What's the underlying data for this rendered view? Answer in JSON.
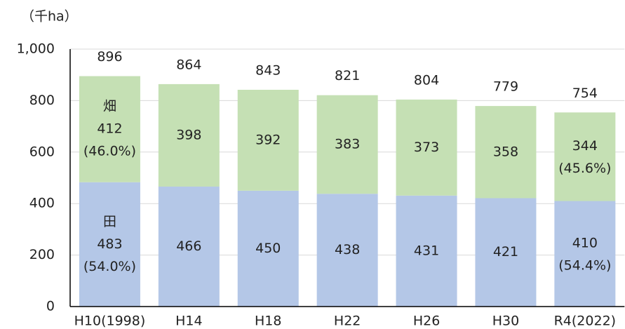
{
  "chart_data": {
    "type": "stacked_bar",
    "y_label": "（千ha）",
    "categories": [
      "H10(1998)",
      "H14",
      "H18",
      "H22",
      "H26",
      "H30",
      "R4(2022)"
    ],
    "series": [
      {
        "name": "田",
        "color": "#b4c7e7",
        "values": [
          483,
          466,
          450,
          438,
          431,
          421,
          410
        ],
        "share_labels": [
          "(54.0%)",
          null,
          null,
          null,
          null,
          null,
          "(54.4%)"
        ]
      },
      {
        "name": "畑",
        "color": "#c5e0b4",
        "values": [
          412,
          398,
          392,
          383,
          373,
          358,
          344
        ],
        "share_labels": [
          "(46.0%)",
          null,
          null,
          null,
          null,
          null,
          "(45.6%)"
        ]
      }
    ],
    "totals": [
      896,
      864,
      843,
      821,
      804,
      779,
      754
    ],
    "ylim": [
      0,
      1000
    ],
    "yticks": [
      0,
      200,
      400,
      600,
      800,
      {
        "value": 1000,
        "label": "1,000"
      }
    ],
    "grid": true
  }
}
